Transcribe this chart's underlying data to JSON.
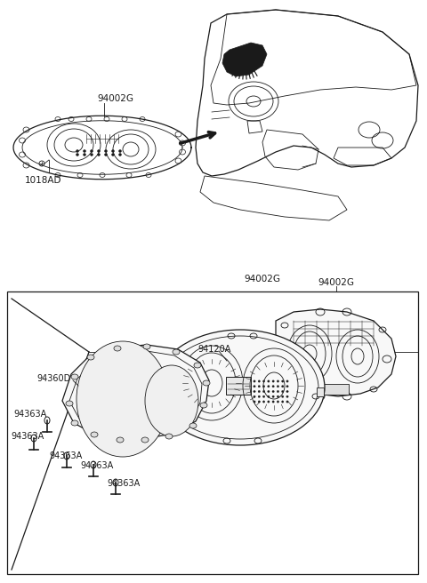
{
  "bg_color": "#ffffff",
  "line_color": "#1a1a1a",
  "figsize": [
    4.8,
    6.56
  ],
  "dpi": 100,
  "top": {
    "cluster_label": "94002G",
    "screw_label": "1018AD",
    "cluster_label2": "94002G"
  },
  "bottom": {
    "main_label": "94002G",
    "lens_label": "94360D",
    "gauge_label": "94120A",
    "bulb_label": "94363A",
    "bulb_count": 5
  }
}
